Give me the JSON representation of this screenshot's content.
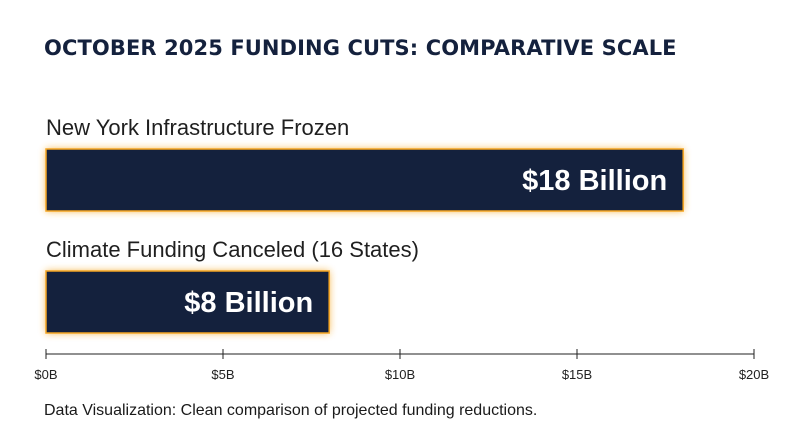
{
  "chart_data": {
    "type": "bar",
    "orientation": "horizontal",
    "title": "OCTOBER 2025 FUNDING CUTS: COMPARATIVE SCALE",
    "categories": [
      "New York Infrastructure Frozen",
      "Climate Funding Canceled (16 States)"
    ],
    "values": [
      18,
      8
    ],
    "value_labels": [
      "$18 Billion",
      "$8 Billion"
    ],
    "unit": "billion USD",
    "xlim": [
      0,
      20
    ],
    "ticks": [
      0,
      5,
      10,
      15,
      20
    ],
    "tick_labels": [
      "$0B",
      "$5B",
      "$10B",
      "$15B",
      "$20B"
    ],
    "grid": false,
    "legend": "none",
    "colors": {
      "bar_fill": "#14213d",
      "bar_glow": "#f5a623",
      "axis": "#222222"
    }
  },
  "caption": "Data Visualization: Clean comparison of projected funding reductions."
}
